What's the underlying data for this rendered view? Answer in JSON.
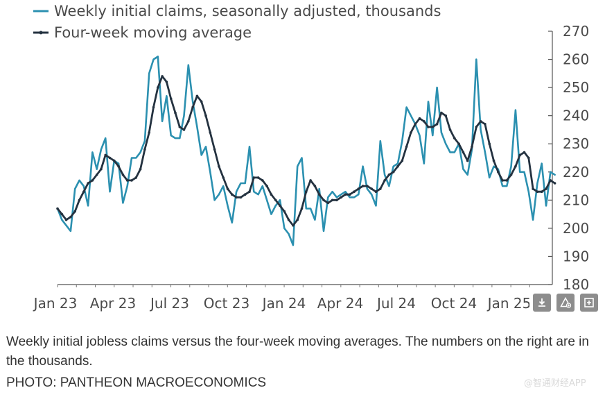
{
  "chart_data": {
    "type": "line",
    "ylim": [
      180,
      270
    ],
    "y_ticks": [
      180,
      190,
      200,
      210,
      220,
      230,
      240,
      250,
      260,
      270
    ],
    "x_tick_labels": [
      "Jan 23",
      "Apr 23",
      "Jul 23",
      "Oct 23",
      "Jan 24",
      "Apr 24",
      "Jul 24",
      "Oct 24",
      "Jan 25"
    ],
    "x_range_weeks": [
      0,
      112
    ],
    "y_axis_side": "right",
    "legend_position": "top-left",
    "series": [
      {
        "name": "Weekly initial claims, seasonally adjusted, thousands",
        "color": "#2b90b0",
        "values": [
          207,
          203,
          201,
          199,
          214,
          217,
          215,
          208,
          227,
          221,
          228,
          232,
          213,
          224,
          223,
          209,
          215,
          225,
          225,
          227,
          231,
          255,
          260,
          261,
          238,
          247,
          233,
          232,
          232,
          240,
          258,
          245,
          236,
          226,
          229,
          220,
          210,
          212,
          215,
          208,
          202,
          213,
          216,
          216,
          229,
          213,
          212,
          215,
          210,
          205,
          208,
          210,
          200,
          198,
          194,
          222,
          225,
          207,
          207,
          203,
          214,
          199,
          211,
          213,
          211,
          212,
          213,
          211,
          211,
          212,
          222,
          214,
          212,
          208,
          231,
          219,
          215,
          222,
          223,
          231,
          243,
          240,
          237,
          233,
          223,
          245,
          233,
          250,
          234,
          230,
          227,
          227,
          230,
          221,
          219,
          228,
          260,
          235,
          227,
          218,
          222,
          221,
          215,
          215,
          222,
          242,
          220,
          220,
          213,
          203,
          216,
          223,
          208,
          220,
          219
        ],
        "x_start": 0
      },
      {
        "name": "Four-week moving average",
        "color": "#243240",
        "values": [
          207,
          205,
          203,
          204,
          206,
          210,
          213,
          216,
          217,
          219,
          221,
          226,
          225,
          224,
          222,
          219,
          217,
          217,
          218,
          221,
          228,
          234,
          243,
          250,
          254,
          252,
          246,
          241,
          236,
          235,
          238,
          243,
          247,
          245,
          240,
          234,
          228,
          222,
          218,
          214,
          212,
          211,
          211,
          212,
          213,
          218,
          218,
          217,
          215,
          212,
          210,
          208,
          206,
          203,
          201,
          203,
          207,
          213,
          217,
          215,
          212,
          210,
          209,
          210,
          210,
          211,
          212,
          212,
          213,
          214,
          215,
          215,
          214,
          213,
          214,
          217,
          219,
          220,
          222,
          224,
          229,
          234,
          237,
          239,
          238,
          236,
          236,
          237,
          241,
          240,
          235,
          232,
          230,
          227,
          224,
          229,
          236,
          238,
          237,
          230,
          224,
          220,
          217,
          217,
          219,
          222,
          226,
          227,
          225,
          214,
          213,
          213,
          214,
          217,
          216
        ],
        "x_start": 0
      }
    ]
  },
  "legend": {
    "items": [
      {
        "label": "Weekly initial claims, seasonally adjusted, thousands",
        "color": "#2b90b0"
      },
      {
        "label": "Four-week moving average",
        "color": "#243240"
      }
    ]
  },
  "toolbar": {
    "icons": [
      "download-icon",
      "share-icon",
      "expand-icon"
    ]
  },
  "caption": {
    "text": "Weekly initial jobless claims versus the four-week moving averages. The numbers on the right are in the thousands.",
    "credit": "PHOTO: PANTHEON MACROECONOMICS"
  },
  "watermark": {
    "text": "@智通财经APP"
  }
}
